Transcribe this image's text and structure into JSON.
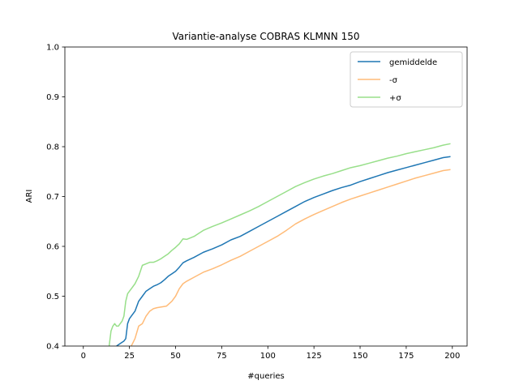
{
  "chart_data": {
    "type": "line",
    "title": "Variantie-analyse COBRAS KLMNN 150",
    "xlabel": "#queries",
    "ylabel": "ARI",
    "xlim": [
      -10,
      208
    ],
    "ylim": [
      0.4,
      1.0
    ],
    "xticks": [
      0,
      25,
      50,
      75,
      100,
      125,
      150,
      175,
      200
    ],
    "yticks": [
      0.4,
      0.5,
      0.6,
      0.7,
      0.8,
      0.9,
      1.0
    ],
    "ytick_labels": [
      "0.4",
      "0.5",
      "0.6",
      "0.7",
      "0.8",
      "0.9",
      "1.0"
    ],
    "grid": false,
    "legend": "top-right",
    "series": [
      {
        "name": "gemiddelde",
        "color": "#1f77b4",
        "x": [
          18,
          20,
          22,
          23,
          24,
          25,
          26,
          28,
          30,
          32,
          34,
          36,
          38,
          40,
          42,
          44,
          46,
          48,
          50,
          52,
          54,
          56,
          60,
          65,
          70,
          75,
          80,
          85,
          90,
          95,
          100,
          105,
          110,
          115,
          120,
          125,
          130,
          135,
          140,
          145,
          150,
          155,
          160,
          165,
          170,
          175,
          180,
          185,
          190,
          195,
          199
        ],
        "y": [
          0.4,
          0.405,
          0.41,
          0.415,
          0.445,
          0.455,
          0.46,
          0.47,
          0.49,
          0.5,
          0.51,
          0.515,
          0.52,
          0.523,
          0.527,
          0.533,
          0.54,
          0.545,
          0.55,
          0.558,
          0.567,
          0.571,
          0.578,
          0.588,
          0.595,
          0.603,
          0.613,
          0.62,
          0.63,
          0.64,
          0.65,
          0.66,
          0.67,
          0.68,
          0.69,
          0.698,
          0.705,
          0.712,
          0.718,
          0.723,
          0.73,
          0.736,
          0.742,
          0.748,
          0.753,
          0.758,
          0.763,
          0.768,
          0.773,
          0.778,
          0.78
        ]
      },
      {
        "name": "-σ",
        "color": "#ffbb78",
        "x": [
          26,
          28,
          30,
          32,
          34,
          36,
          38,
          40,
          45,
          48,
          50,
          52,
          54,
          56,
          60,
          65,
          70,
          75,
          80,
          85,
          90,
          95,
          100,
          105,
          110,
          115,
          120,
          125,
          130,
          135,
          140,
          145,
          150,
          155,
          160,
          165,
          170,
          175,
          180,
          185,
          190,
          195,
          199
        ],
        "y": [
          0.4,
          0.415,
          0.44,
          0.445,
          0.46,
          0.47,
          0.475,
          0.477,
          0.48,
          0.49,
          0.5,
          0.515,
          0.525,
          0.53,
          0.538,
          0.548,
          0.555,
          0.563,
          0.572,
          0.58,
          0.59,
          0.6,
          0.61,
          0.62,
          0.632,
          0.645,
          0.655,
          0.664,
          0.672,
          0.68,
          0.688,
          0.695,
          0.701,
          0.707,
          0.713,
          0.719,
          0.725,
          0.731,
          0.737,
          0.742,
          0.747,
          0.752,
          0.754
        ]
      },
      {
        "name": "+σ",
        "color": "#98df8a",
        "x": [
          14,
          15,
          16,
          17,
          18,
          19,
          20,
          21,
          22,
          23,
          24,
          25,
          26,
          28,
          30,
          32,
          34,
          36,
          38,
          40,
          42,
          44,
          46,
          48,
          50,
          52,
          54,
          56,
          60,
          65,
          70,
          75,
          80,
          85,
          90,
          95,
          100,
          105,
          110,
          115,
          120,
          125,
          130,
          135,
          140,
          145,
          150,
          155,
          160,
          165,
          170,
          175,
          180,
          185,
          190,
          195,
          199
        ],
        "y": [
          0.4,
          0.43,
          0.44,
          0.445,
          0.44,
          0.44,
          0.445,
          0.45,
          0.46,
          0.49,
          0.505,
          0.51,
          0.515,
          0.525,
          0.54,
          0.562,
          0.565,
          0.568,
          0.568,
          0.571,
          0.575,
          0.58,
          0.585,
          0.592,
          0.598,
          0.605,
          0.615,
          0.614,
          0.62,
          0.632,
          0.64,
          0.647,
          0.655,
          0.663,
          0.671,
          0.68,
          0.69,
          0.7,
          0.71,
          0.72,
          0.728,
          0.735,
          0.741,
          0.746,
          0.752,
          0.758,
          0.762,
          0.767,
          0.772,
          0.777,
          0.781,
          0.786,
          0.79,
          0.794,
          0.798,
          0.803,
          0.806
        ]
      }
    ]
  }
}
